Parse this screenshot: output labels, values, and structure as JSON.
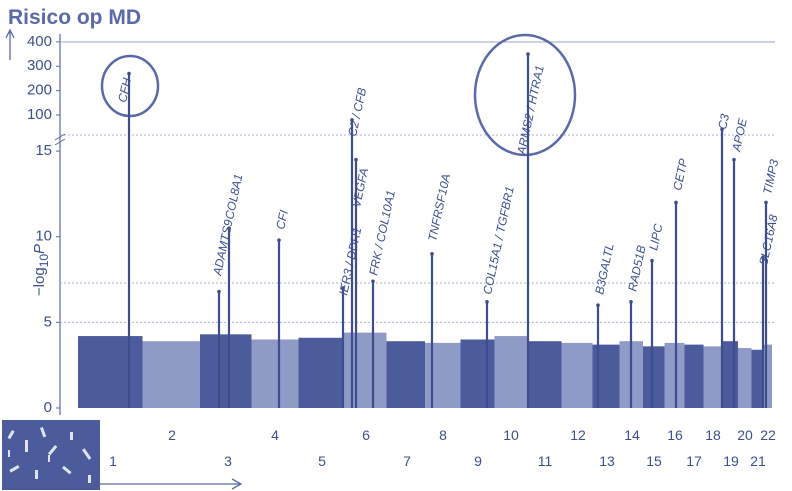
{
  "chart_data": {
    "type": "manhattan",
    "title": "Risico op MD",
    "ylabel": {
      "prefix": "−log",
      "sub": "10",
      "var": "P"
    },
    "ylim": [
      0,
      15.5
    ],
    "yticks": [
      0,
      5,
      10,
      15
    ],
    "y2lim": [
      18,
      420
    ],
    "y2ticks": [
      100,
      200,
      300,
      400
    ],
    "threshold_lines": [
      5,
      7.3
    ],
    "colors": [
      "#4b5b9c",
      "#8f9bc6"
    ],
    "hit_color": "#3d4d8e",
    "categories": [
      "1",
      "2",
      "3",
      "4",
      "5",
      "6",
      "7",
      "8",
      "9",
      "10",
      "11",
      "12",
      "13",
      "14",
      "15",
      "16",
      "17",
      "18",
      "19",
      "20",
      "21",
      "22"
    ],
    "values": [
      4.2,
      3.9,
      4.3,
      4.0,
      4.1,
      4.4,
      3.9,
      3.8,
      4.0,
      4.2,
      3.9,
      3.8,
      3.7,
      3.9,
      3.6,
      3.8,
      3.7,
      3.6,
      3.9,
      3.5,
      3.4,
      3.7
    ],
    "hits": [
      {
        "label": "CFH",
        "chromosome": "1",
        "value": 270
      },
      {
        "label": "ADAMTS9",
        "chromosome": "3",
        "value": 6.8
      },
      {
        "label": "COL8A1",
        "chromosome": "3",
        "value": 10.5
      },
      {
        "label": "CFI",
        "chromosome": "4",
        "value": 9.8
      },
      {
        "label": "IER3 / DDR1",
        "chromosome": "6",
        "value": 7
      },
      {
        "label": "C2 / CFB",
        "chromosome": "6",
        "value": 80
      },
      {
        "label": "VEGFA",
        "chromosome": "6",
        "value": 14.5
      },
      {
        "label": "FRK / COL10A1",
        "chromosome": "6",
        "value": 7.4
      },
      {
        "label": "TNFRSF10A",
        "chromosome": "8",
        "value": 9
      },
      {
        "label": "COL15A1 / TGFBR1",
        "chromosome": "9",
        "value": 6.2
      },
      {
        "label": "ARMS2 / HTRA1",
        "chromosome": "10",
        "value": 350
      },
      {
        "label": "B3GALTL",
        "chromosome": "13",
        "value": 6
      },
      {
        "label": "RAD51B",
        "chromosome": "14",
        "value": 6.2
      },
      {
        "label": "LIPC",
        "chromosome": "15",
        "value": 8.6
      },
      {
        "label": "CETP",
        "chromosome": "16",
        "value": 12
      },
      {
        "label": "C3",
        "chromosome": "19",
        "value": 41
      },
      {
        "label": "APOE",
        "chromosome": "19",
        "value": 14.5
      },
      {
        "label": "TIMP3",
        "chromosome": "22",
        "value": 12
      },
      {
        "label": "SLC16A8",
        "chromosome": "22",
        "value": 8.8
      }
    ]
  }
}
